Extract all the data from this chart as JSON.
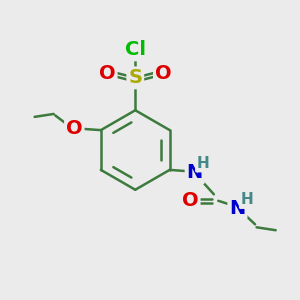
{
  "bg_color": "#ebebeb",
  "bond_color": "#3d7a3d",
  "atom_colors": {
    "N": "#0000cc",
    "O": "#dd0000",
    "S": "#aaaa00",
    "Cl": "#00bb00",
    "H_label": "#448888"
  },
  "lw": 1.8,
  "fs": 14,
  "fs_small": 11
}
